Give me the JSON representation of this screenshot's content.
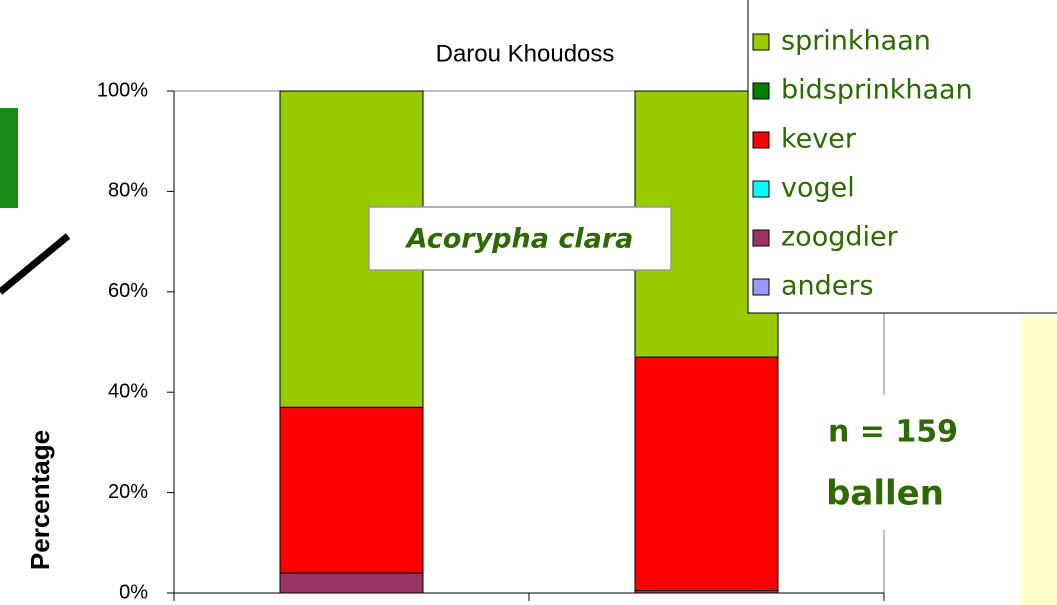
{
  "chart_data": {
    "type": "stacked_bar",
    "title": "Darou Khoudoss",
    "ylabel": "Percentage",
    "categories": [
      null,
      null
    ],
    "series": [
      {
        "name": "sprinkhaan",
        "color": "#99cc00",
        "values": [
          63,
          53
        ]
      },
      {
        "name": "bidsprinkhaan",
        "color": "#008000",
        "values": [
          0,
          0
        ]
      },
      {
        "name": "kever",
        "color": "#ff0000",
        "values": [
          33,
          46.5
        ]
      },
      {
        "name": "vogel",
        "color": "#00ffff",
        "values": [
          0,
          0
        ]
      },
      {
        "name": "zoogdier",
        "color": "#993366",
        "values": [
          4,
          0.5
        ]
      },
      {
        "name": "anders",
        "color": "#9999ff",
        "values": [
          0,
          0
        ]
      }
    ],
    "ylim": [
      0,
      100
    ],
    "yticks": [
      {
        "value": 0,
        "label": "0%"
      },
      {
        "value": 20,
        "label": "20%"
      },
      {
        "value": 40,
        "label": "40%"
      },
      {
        "value": 60,
        "label": "60%"
      },
      {
        "value": 80,
        "label": "80%"
      },
      {
        "value": 100,
        "label": "100%"
      }
    ],
    "legend": "top-right",
    "annotations": [
      "Acorypha clara",
      "n = 159",
      "ballen"
    ]
  }
}
